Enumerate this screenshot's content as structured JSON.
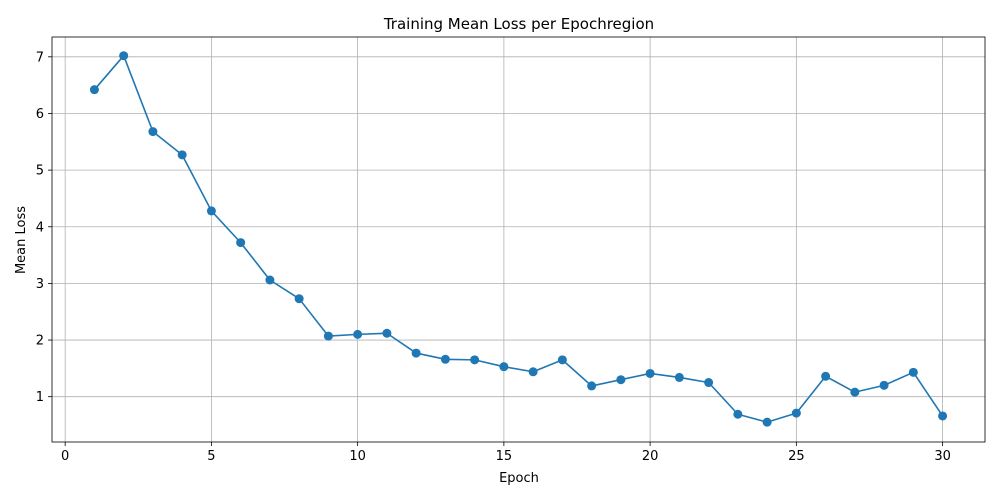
{
  "chart_data": {
    "type": "line",
    "title": "Training Mean Loss per Epochregion",
    "xlabel": "Epoch",
    "ylabel": "Mean Loss",
    "xlim": [
      -0.45,
      31.45
    ],
    "ylim": [
      0.2,
      7.35
    ],
    "xticks": [
      0,
      5,
      10,
      15,
      20,
      25,
      30
    ],
    "yticks": [
      1,
      2,
      3,
      4,
      5,
      6,
      7
    ],
    "grid": true,
    "colors": {
      "line": "#1f77b4",
      "grid": "#b0b0b0",
      "axes": "#000000"
    },
    "series": [
      {
        "x": [
          1,
          2,
          3,
          4,
          5,
          6,
          7,
          8,
          9,
          10,
          11,
          12,
          13,
          14,
          15,
          16,
          17,
          18,
          19,
          20,
          21,
          22,
          23,
          24,
          25,
          26,
          27,
          28,
          29,
          30
        ],
        "values": [
          6.42,
          7.02,
          5.68,
          5.27,
          4.28,
          3.72,
          3.06,
          2.73,
          2.07,
          2.1,
          2.12,
          1.77,
          1.66,
          1.65,
          1.53,
          1.44,
          1.65,
          1.19,
          1.3,
          1.41,
          1.34,
          1.25,
          0.69,
          0.55,
          0.71,
          1.36,
          1.08,
          1.2,
          1.43,
          0.66
        ]
      }
    ]
  }
}
